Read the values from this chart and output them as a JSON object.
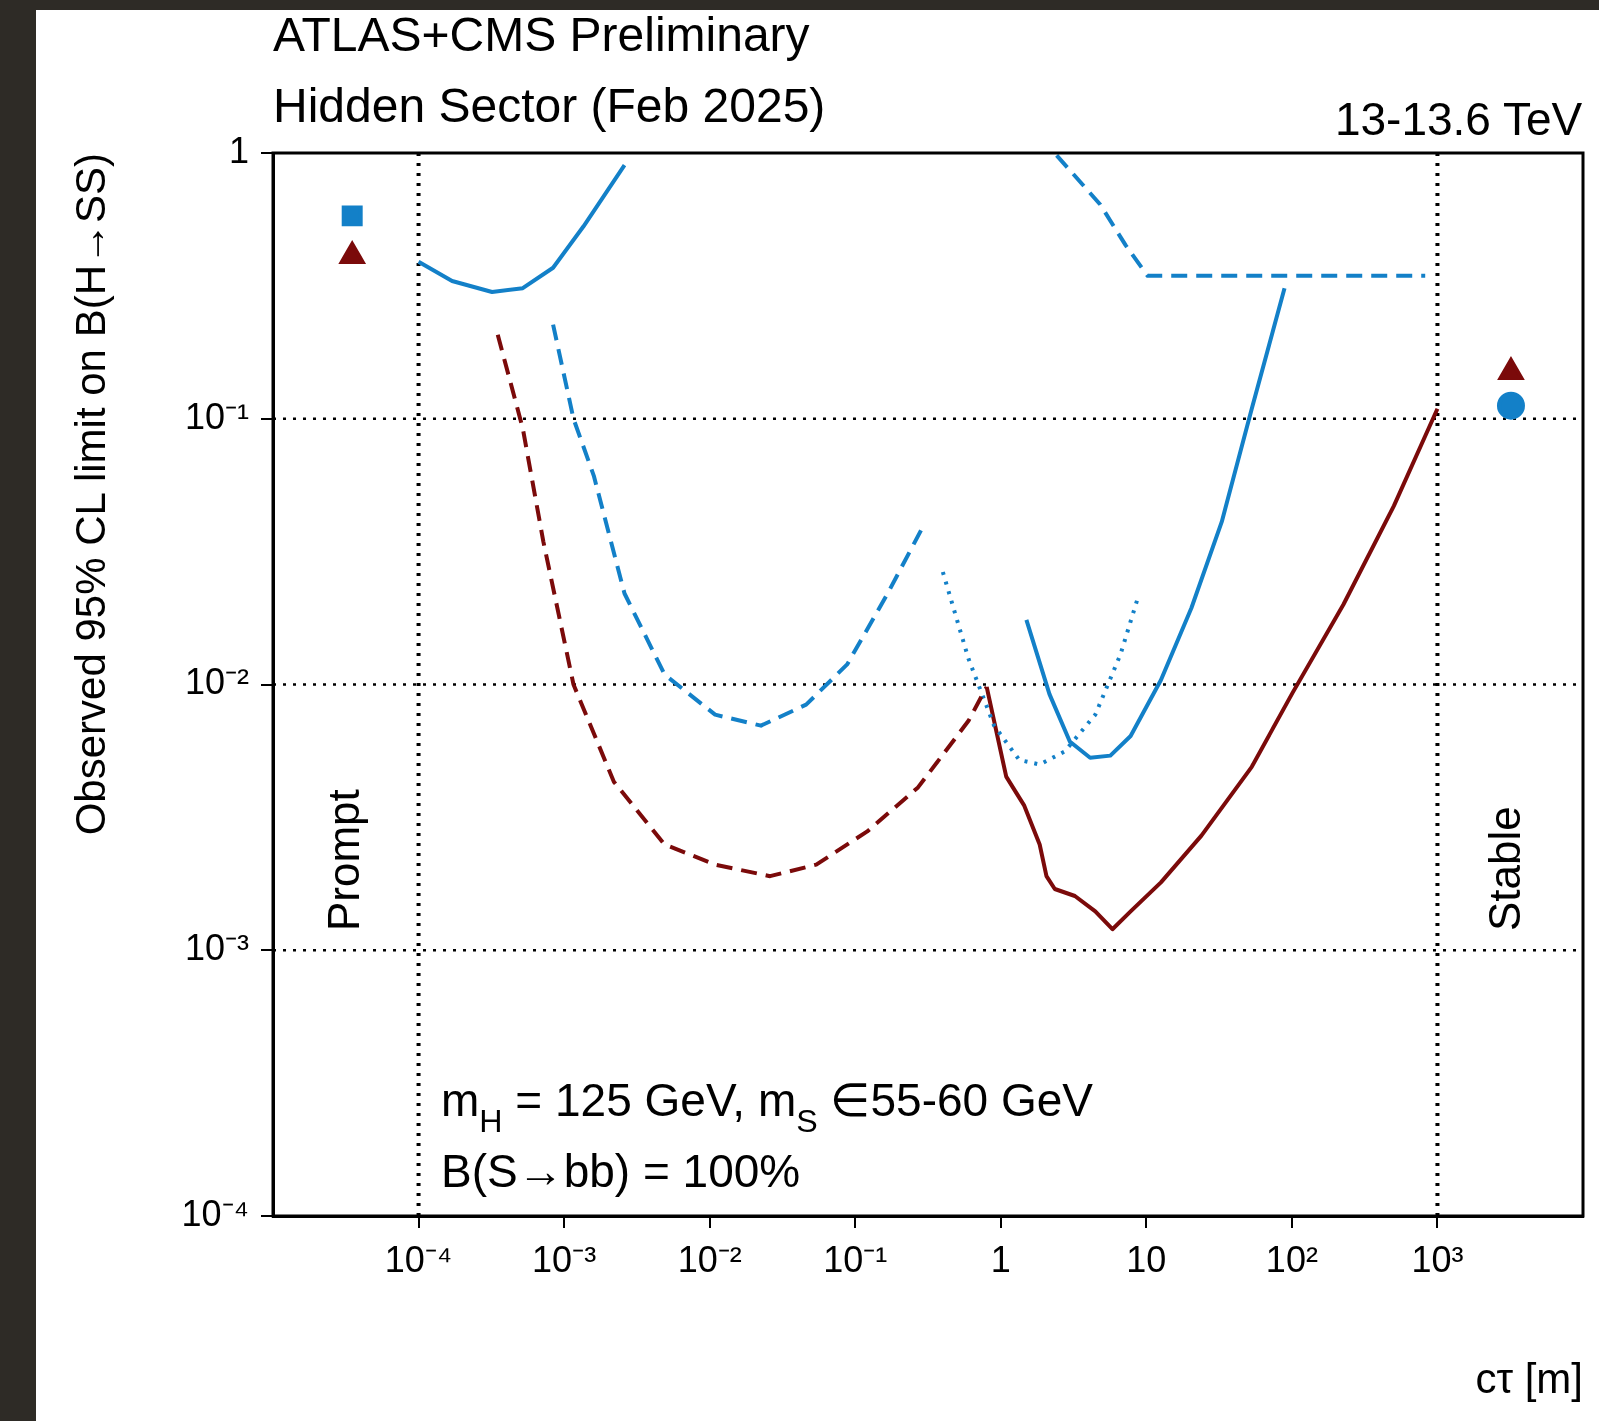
{
  "chart_data": {
    "type": "line",
    "title": "ATLAS+CMS Preliminary",
    "subtitle": "Hidden Sector (Feb 2025)",
    "xlabel": "cτ [m]",
    "ylabel": "Observed 95% CL limit on B(H→SS)",
    "annotations": [
      "13-13.6 TeV",
      "m$_{H}$ = 125 GeV, m$_{S}$ ∈55-60 GeV",
      "B(S→bb) = 100%"
    ],
    "log": "xy",
    "grid": false,
    "legend": false,
    "xlim": [
      1e-05,
      10000
    ],
    "ylim": [
      0.0001,
      1
    ],
    "xticks": [
      {
        "value": 0.0001,
        "label": "10⁻⁴"
      },
      {
        "value": 0.001,
        "label": "10⁻³"
      },
      {
        "value": 0.01,
        "label": "10⁻²"
      },
      {
        "value": 0.1,
        "label": "10⁻¹"
      },
      1,
      10,
      {
        "value": 100,
        "label": "10²"
      },
      {
        "value": 1000,
        "label": "10³"
      }
    ],
    "yticks": [
      {
        "value": 0.0001,
        "label": "10⁻⁴"
      },
      {
        "value": 0.001,
        "label": "10⁻³"
      },
      {
        "value": 0.01,
        "label": "10⁻²"
      },
      {
        "value": 0.1,
        "label": "10⁻¹"
      },
      1
    ],
    "ref_lines": [
      {
        "axis": "x",
        "value": 0.0001,
        "label": "Prompt",
        "color": "#000000",
        "line_style": "dotted"
      },
      {
        "axis": "x",
        "value": 1000,
        "label": "Stable",
        "color": "#000000",
        "line_style": "dotted"
      },
      {
        "axis": "y",
        "value": 0.1,
        "color": "#000000",
        "line_style": "dotted"
      },
      {
        "axis": "y",
        "value": 0.01,
        "color": "#000000",
        "line_style": "dotted"
      },
      {
        "axis": "y",
        "value": 0.001,
        "color": "#000000",
        "line_style": "dotted"
      }
    ],
    "series": [
      {
        "color": "#1380c8",
        "line_style": "solid",
        "x": [
          0.0001,
          0.00017,
          0.00032,
          0.00052,
          0.00084,
          0.00136,
          0.0026
        ],
        "values": [
          0.39,
          0.33,
          0.3,
          0.31,
          0.37,
          0.53,
          0.9
        ]
      },
      {
        "color": "#7b0a0a",
        "line_style": "dashed",
        "x": [
          0.00035,
          0.00052,
          0.00072,
          0.00116,
          0.0022,
          0.0049,
          0.0109,
          0.026,
          0.054,
          0.121,
          0.27,
          0.6,
          0.8
        ],
        "values": [
          0.207,
          0.092,
          0.0345,
          0.01,
          0.0043,
          0.0025,
          0.0021,
          0.0019,
          0.0021,
          0.0028,
          0.0041,
          0.0073,
          0.0098
        ]
      },
      {
        "color": "#1380c8",
        "line_style": "dashed",
        "x": [
          0.00084,
          0.00116,
          0.0016,
          0.0026,
          0.0049,
          0.0109,
          0.0225,
          0.046,
          0.088,
          0.167,
          0.283
        ],
        "values": [
          0.226,
          0.1,
          0.061,
          0.022,
          0.0109,
          0.0077,
          0.007,
          0.0084,
          0.0119,
          0.022,
          0.038
        ]
      },
      {
        "color": "#1380c8",
        "line_style": "dotted",
        "x": [
          0.4,
          0.6,
          0.9,
          1.34,
          1.85,
          2.75,
          4.46,
          6.65,
          8.7
        ],
        "values": [
          0.0265,
          0.0125,
          0.007,
          0.0052,
          0.005,
          0.0056,
          0.0077,
          0.013,
          0.021
        ]
      },
      {
        "color": "#1380c8",
        "line_style": "solid",
        "x": [
          1.5,
          2.16,
          2.98,
          4.11,
          5.66,
          7.8,
          12.6,
          20.4,
          33,
          53,
          89
        ],
        "values": [
          0.0175,
          0.0092,
          0.0061,
          0.0053,
          0.0054,
          0.0064,
          0.0104,
          0.0194,
          0.041,
          0.109,
          0.31
        ]
      },
      {
        "color": "#1380c8",
        "line_style": "dashed",
        "x": [
          2.42,
          4.82,
          7.2,
          10.2,
          824
        ],
        "values": [
          0.98,
          0.64,
          0.45,
          0.345,
          0.345
        ]
      },
      {
        "color": "#7b0a0a",
        "line_style": "solid",
        "x": [
          0.8,
          1.09,
          1.45,
          1.85,
          2.06,
          2.35,
          3.23,
          4.46,
          5.85,
          7.8,
          12.6,
          23.9,
          53,
          101,
          226,
          502,
          1000
        ],
        "values": [
          0.0098,
          0.0045,
          0.0035,
          0.0025,
          0.0019,
          0.0017,
          0.0016,
          0.0014,
          0.0012,
          0.0014,
          0.0018,
          0.0027,
          0.0049,
          0.0093,
          0.02,
          0.047,
          0.109
        ]
      },
      {
        "type": "scatter",
        "color": "#1380c8",
        "marker": "square",
        "x": [
          3.5e-05
        ],
        "values": [
          0.58
        ]
      },
      {
        "type": "scatter",
        "color": "#7b0a0a",
        "marker": "triangle",
        "x": [
          3.5e-05
        ],
        "values": [
          0.41
        ]
      },
      {
        "type": "scatter",
        "color": "#7b0a0a",
        "marker": "triangle",
        "x": [
          3200
        ],
        "values": [
          0.15
        ]
      },
      {
        "type": "scatter",
        "color": "#1380c8",
        "marker": "circle",
        "x": [
          3200
        ],
        "values": [
          0.112
        ]
      }
    ]
  }
}
